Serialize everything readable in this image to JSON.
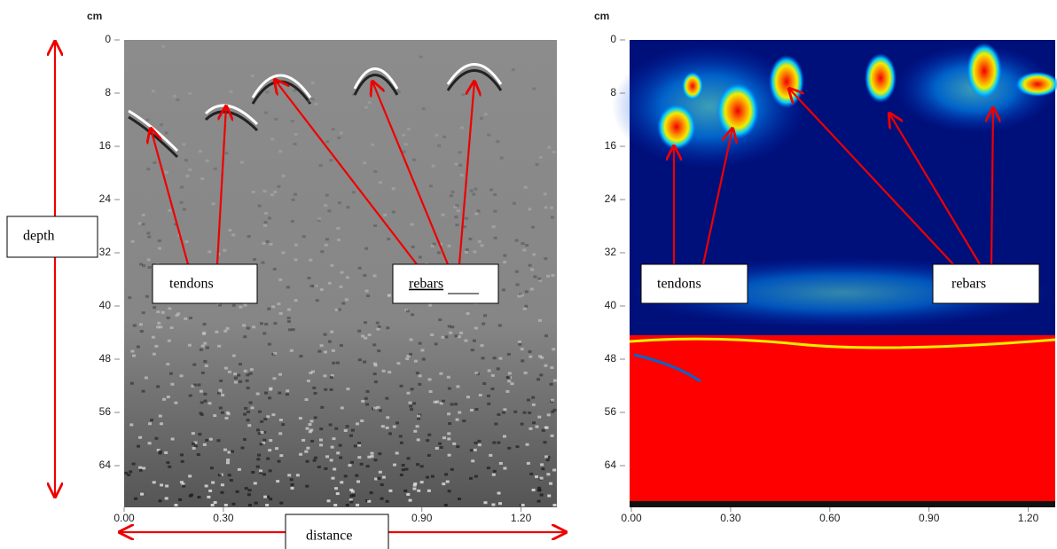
{
  "left_panel": {
    "y_unit": "cm",
    "yticks": [
      0,
      8,
      16,
      24,
      32,
      40,
      48,
      56,
      64
    ],
    "xticks": [
      {
        "value": 0,
        "label": "0.00"
      },
      {
        "value": 0.3,
        "label": "0.30"
      },
      {
        "value": 0.9,
        "label": "0.90"
      },
      {
        "value": 1.2,
        "label": "1.20"
      }
    ],
    "labels": {
      "depth": "depth",
      "tendons": "tendons",
      "rebars": "rebars",
      "distance": "distance"
    }
  },
  "right_panel": {
    "y_unit": "cm",
    "yticks": [
      0,
      8,
      16,
      24,
      32,
      40,
      48,
      56,
      64
    ],
    "xticks": [
      {
        "value": 0,
        "label": "0.00"
      },
      {
        "value": 0.3,
        "label": "0.30"
      },
      {
        "value": 0.6,
        "label": "0.60"
      },
      {
        "value": 0.9,
        "label": "0.90"
      },
      {
        "value": 1.2,
        "label": "1.20"
      }
    ],
    "labels": {
      "tendons": "tendons",
      "rebars": "rebars"
    }
  }
}
